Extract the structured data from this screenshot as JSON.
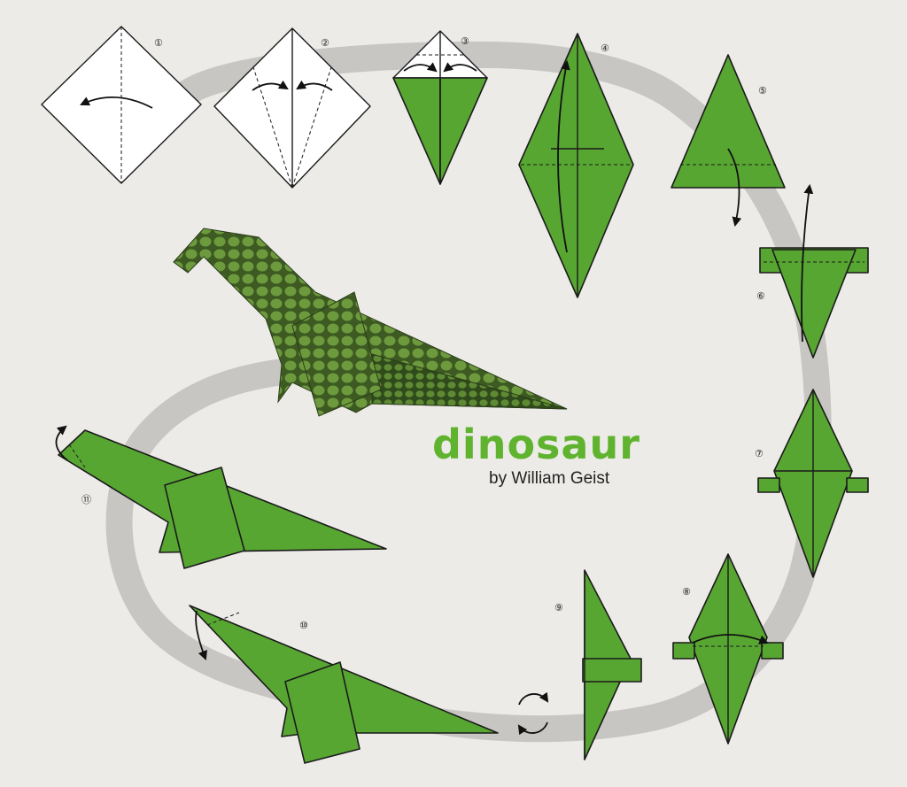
{
  "title": "dinosaur",
  "byline": "by William Geist",
  "colors": {
    "paper_green": "#58a632",
    "title_green": "#5fb32e",
    "path_gray": "#c7c6c3",
    "background": "#ecebe8"
  },
  "steps": [
    {
      "id": 1,
      "label": "①"
    },
    {
      "id": 2,
      "label": "②"
    },
    {
      "id": 3,
      "label": "③"
    },
    {
      "id": 4,
      "label": "④"
    },
    {
      "id": 5,
      "label": "⑤"
    },
    {
      "id": 6,
      "label": "⑥"
    },
    {
      "id": 7,
      "label": "⑦"
    },
    {
      "id": 8,
      "label": "⑧"
    },
    {
      "id": 9,
      "label": "⑨"
    },
    {
      "id": 10,
      "label": "⑩"
    },
    {
      "id": 11,
      "label": "⑪"
    }
  ],
  "icons": [
    "fold-arrow-icon",
    "turn-over-icon"
  ]
}
